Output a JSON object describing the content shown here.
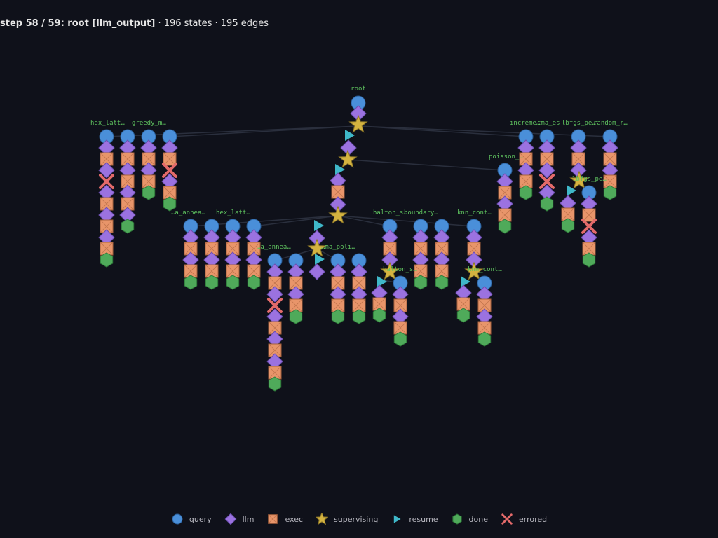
{
  "header": {
    "step": "step 58 / 59: root [llm_output]",
    "stats": " · 196 states · 195 edges"
  },
  "colors": {
    "query": "#4a8fd9",
    "llm": "#9b72e0",
    "exec": "#e8956a",
    "supervising": "#d4b340",
    "resume": "#3fb8c9",
    "done": "#4faa5a",
    "errored": "#e36a6a"
  },
  "labels": [
    {
      "id": "root",
      "text": "root"
    },
    {
      "id": "hex1",
      "text": "hex_latt…"
    },
    {
      "id": "greedy",
      "text": "greedy_m…"
    },
    {
      "id": "incr",
      "text": "increme…"
    },
    {
      "id": "cma",
      "text": "cma_es"
    },
    {
      "id": "lbfgs",
      "text": "lbfgs_pe…"
    },
    {
      "id": "random",
      "text": "random_r…"
    },
    {
      "id": "poisson",
      "text": "poisson_…"
    },
    {
      "id": "lbfgs2",
      "text": "lbfgs_pe…"
    },
    {
      "id": "anneal1",
      "text": "…a_annea…"
    },
    {
      "id": "hex2",
      "text": "hex_latt…"
    },
    {
      "id": "halton1",
      "text": "halton_s…"
    },
    {
      "id": "boundary",
      "text": "boundary…"
    },
    {
      "id": "knn1",
      "text": "knn_cont…"
    },
    {
      "id": "anneal2",
      "text": "…a_annea…"
    },
    {
      "id": "cmapol",
      "text": "…ma_poli…"
    },
    {
      "id": "halton2",
      "text": "halton_s…"
    },
    {
      "id": "knn2",
      "text": "knn_cont…"
    }
  ],
  "legend": [
    {
      "kind": "query",
      "label": "query"
    },
    {
      "kind": "llm",
      "label": "llm"
    },
    {
      "kind": "exec",
      "label": "exec"
    },
    {
      "kind": "supervising",
      "label": "supervising"
    },
    {
      "kind": "resume",
      "label": "resume"
    },
    {
      "kind": "done",
      "label": "done"
    },
    {
      "kind": "errored",
      "label": "errored"
    }
  ]
}
